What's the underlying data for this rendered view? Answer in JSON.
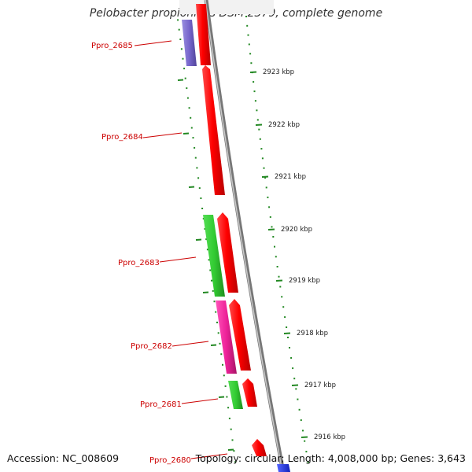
{
  "title": "Pelobacter propionicus DSM 2379, complete genome",
  "accession": "Accession: NC_008609",
  "summary": "Topology: circular; Length: 4,008,000 bp; Genes: 3,643",
  "gene_labels": [
    "Ppro_2685",
    "Ppro_2684",
    "Ppro_2683",
    "Ppro_2682",
    "Ppro_2681",
    "Ppro_2680"
  ],
  "kbp_labels": [
    "2923 kbp",
    "2922 kbp",
    "2921 kbp",
    "2920 kbp",
    "2919 kbp",
    "2918 kbp",
    "2917 kbp",
    "2916 kbp"
  ],
  "colors": {
    "cds": "#ff0000",
    "green_feature": "#33cc33",
    "purple_feature": "#7766cc",
    "pink_feature": "#ee2299",
    "blue_feature": "#2233ee",
    "backbone": "#888888",
    "tick": "#228822",
    "label": "#cc0000"
  }
}
